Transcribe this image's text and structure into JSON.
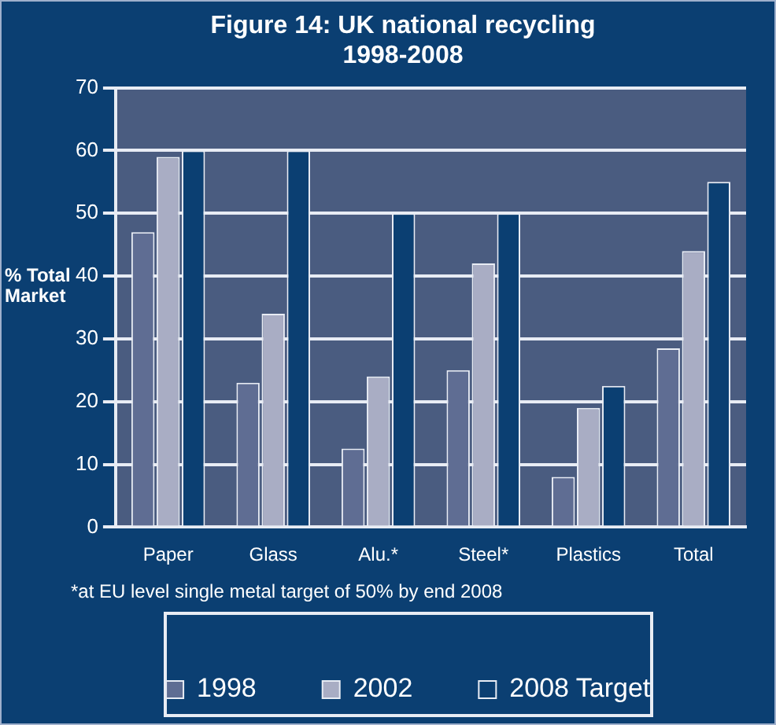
{
  "chart_data": {
    "type": "bar",
    "title": "Figure 14: UK national recycling 1998-2008",
    "ylabel": "% Total Market",
    "categories": [
      "Paper",
      "Glass",
      "Alu.*",
      "Steel*",
      "Plastics",
      "Total"
    ],
    "series": [
      {
        "name": "1998",
        "color": "#5f6d93",
        "values": [
          47,
          23,
          12.5,
          25,
          8,
          28.5
        ]
      },
      {
        "name": "2002",
        "color": "#a9adc4",
        "values": [
          59,
          34,
          24,
          42,
          19,
          44
        ]
      },
      {
        "name": "2008 Target",
        "color": "#0b3f72",
        "values": [
          60,
          60,
          50,
          50,
          22.5,
          55
        ]
      }
    ],
    "ylim": [
      0,
      70
    ],
    "yticks": [
      0,
      10,
      20,
      30,
      40,
      50,
      60,
      70
    ],
    "grid": "y",
    "legend": "bottom",
    "annotations": [
      "*at EU level single metal target of 50% by end 2008"
    ]
  }
}
